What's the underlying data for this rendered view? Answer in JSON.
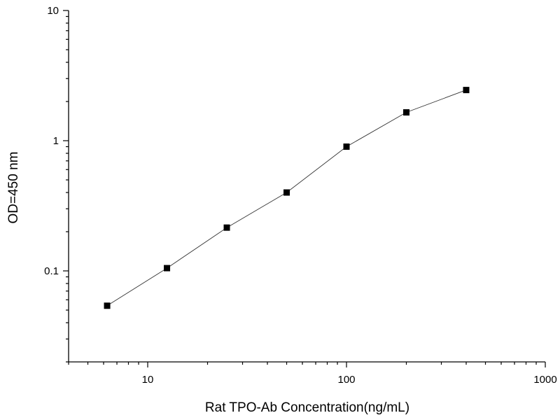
{
  "chart_data": {
    "type": "line",
    "title": "",
    "xlabel": "Rat TPO-Ab Concentration(ng/mL)",
    "ylabel": "OD=450 nm",
    "x_scale": "log",
    "y_scale": "log",
    "xlim": [
      4,
      1000
    ],
    "ylim": [
      0.02,
      10
    ],
    "x_ticks": [
      10,
      100,
      1000
    ],
    "x_tick_labels": [
      "10",
      "100",
      "1000"
    ],
    "y_ticks": [
      0.1,
      1,
      10
    ],
    "y_tick_labels": [
      "0.1",
      "1",
      "10"
    ],
    "grid": false,
    "legend": "none",
    "marker": "square",
    "series": [
      {
        "x": [
          6.25,
          12.5,
          25,
          50,
          100,
          200,
          400
        ],
        "y": [
          0.054,
          0.105,
          0.215,
          0.4,
          0.9,
          1.65,
          2.45
        ],
        "color": "#000000"
      }
    ]
  }
}
